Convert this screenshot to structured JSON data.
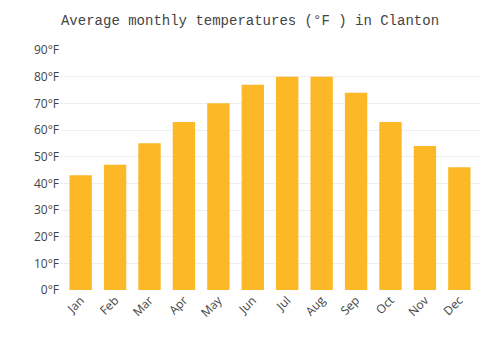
{
  "chart_data": {
    "type": "bar",
    "title": "Average monthly temperatures (°F ) in Clanton",
    "categories": [
      "Jan",
      "Feb",
      "Mar",
      "Apr",
      "May",
      "Jun",
      "Jul",
      "Aug",
      "Sep",
      "Oct",
      "Nov",
      "Dec"
    ],
    "values": [
      43,
      47,
      55,
      63,
      70,
      77,
      80,
      80,
      74,
      63,
      54,
      46
    ],
    "color": "#FDB827",
    "ylim": [
      0,
      90
    ],
    "yticks": [
      {
        "value": 0,
        "label": "0°F"
      },
      {
        "value": 10,
        "label": "10°F"
      },
      {
        "value": 20,
        "label": "20°F"
      },
      {
        "value": 30,
        "label": "30°F"
      },
      {
        "value": 40,
        "label": "40°F"
      },
      {
        "value": 50,
        "label": "50°F"
      },
      {
        "value": 60,
        "label": "60°F"
      },
      {
        "value": 70,
        "label": "70°F"
      },
      {
        "value": 80,
        "label": "80°F"
      },
      {
        "value": 90,
        "label": "90°F"
      }
    ],
    "grid": true
  }
}
